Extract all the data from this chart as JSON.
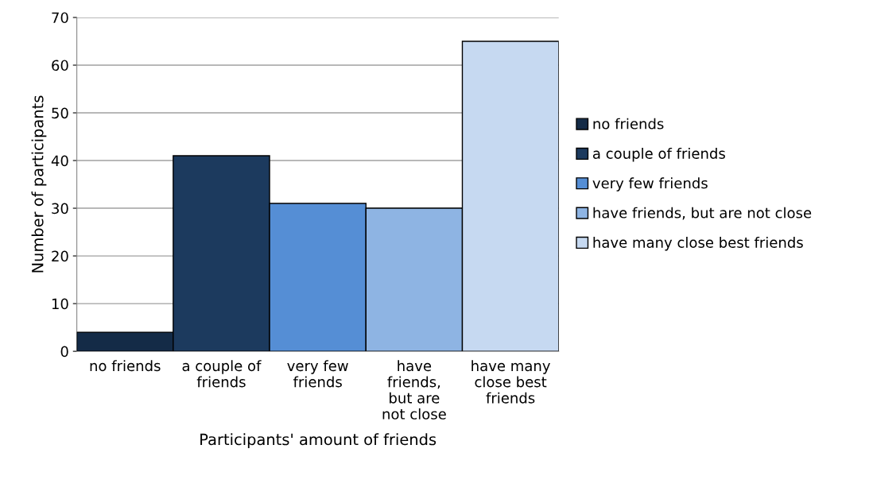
{
  "chart_data": {
    "type": "bar",
    "xlabel": "Participants' amount of friends",
    "ylabel": "Number of participants",
    "categories": [
      "no friends",
      "a couple of\nfriends",
      "very few\nfriends",
      "have\nfriends,\nbut are\nnot close",
      "have many\nclose best\nfriends"
    ],
    "series": [
      {
        "name": "no friends",
        "color": "#142b47",
        "values": [
          4,
          null,
          null,
          null,
          null
        ]
      },
      {
        "name": "a couple of friends",
        "color": "#1c3a5e",
        "values": [
          null,
          41,
          null,
          null,
          null
        ]
      },
      {
        "name": "very few friends",
        "color": "#558ed5",
        "values": [
          null,
          null,
          31,
          null,
          null
        ]
      },
      {
        "name": "have friends, but are not close",
        "color": "#8eb4e3",
        "values": [
          null,
          null,
          null,
          30,
          null
        ]
      },
      {
        "name": "have many close best friends",
        "color": "#c6d9f1",
        "values": [
          null,
          null,
          null,
          null,
          65
        ]
      }
    ],
    "ylim": [
      0,
      70
    ],
    "yticks": [
      0,
      10,
      20,
      30,
      40,
      50,
      60,
      70
    ],
    "grid": "y",
    "legend": "right"
  }
}
